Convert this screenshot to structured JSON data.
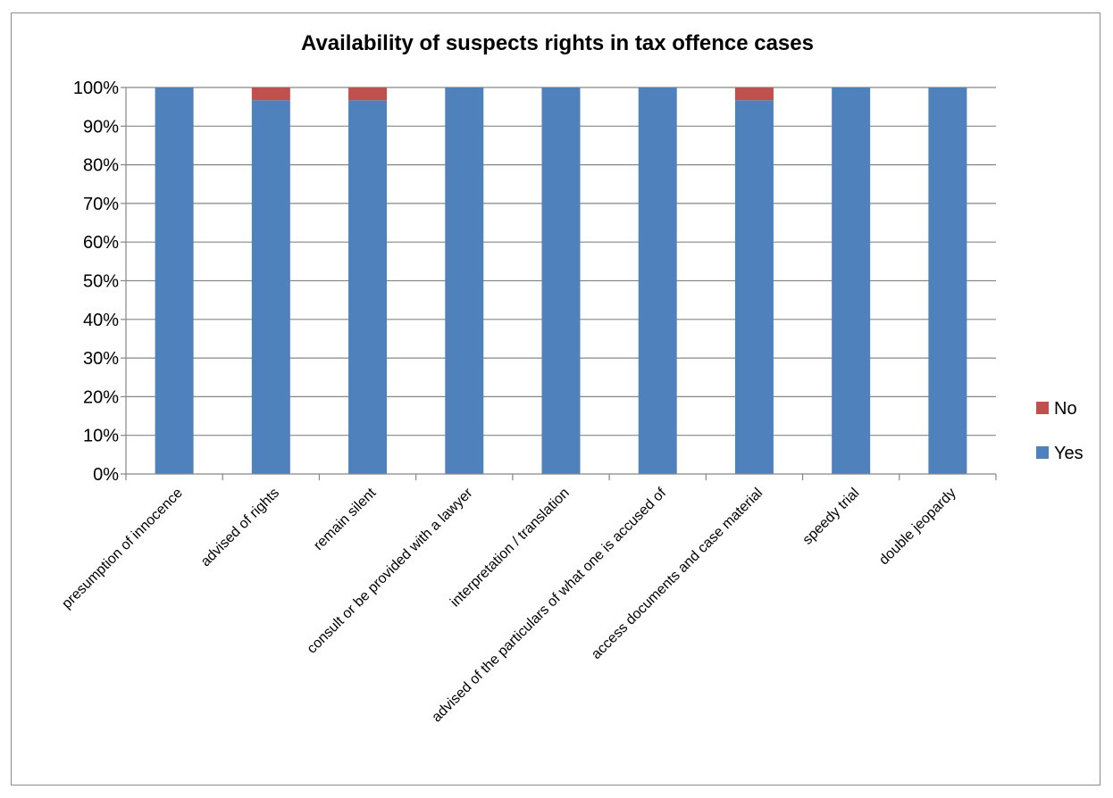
{
  "chart_data": {
    "type": "bar",
    "stacked": true,
    "title": "Availability of suspects rights in tax offence cases",
    "xlabel": "",
    "ylabel": "",
    "ylim": [
      0,
      100
    ],
    "y_ticks": [
      "0%",
      "10%",
      "20%",
      "30%",
      "40%",
      "50%",
      "60%",
      "70%",
      "80%",
      "90%",
      "100%"
    ],
    "grid": true,
    "legend_position": "right",
    "categories": [
      "presumption of innocence",
      "advised of rights",
      "remain silent",
      "consult or be provided with a lawyer",
      "interpretation / translation",
      "advised of the particulars of what one is accused of",
      "access documents and case material",
      "speedy trial",
      "double jeopardy"
    ],
    "series": [
      {
        "name": "Yes",
        "color": "#4f81bd",
        "values": [
          100,
          96.7,
          96.7,
          100,
          100,
          100,
          96.7,
          100,
          100
        ]
      },
      {
        "name": "No",
        "color": "#c0504d",
        "values": [
          0,
          3.3,
          3.3,
          0,
          0,
          0,
          3.3,
          0,
          0
        ]
      }
    ],
    "legend": [
      "No",
      "Yes"
    ]
  }
}
